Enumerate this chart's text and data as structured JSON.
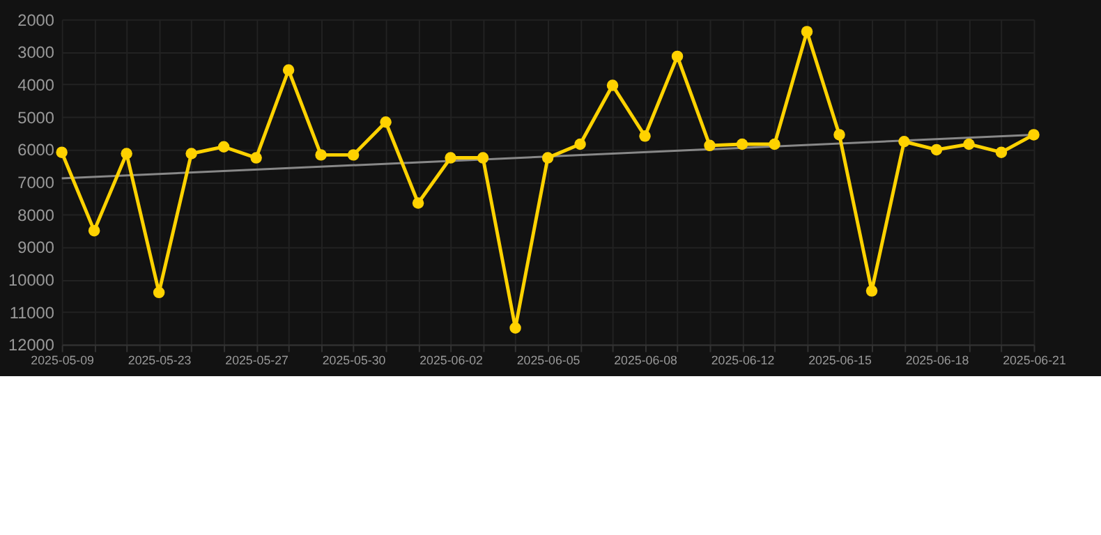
{
  "chart_data": {
    "type": "line",
    "categories": [
      "2025-05-09",
      null,
      null,
      "2025-05-23",
      null,
      null,
      "2025-05-27",
      null,
      null,
      "2025-05-30",
      null,
      null,
      "2025-06-02",
      null,
      null,
      "2025-06-05",
      null,
      null,
      "2025-06-08",
      null,
      null,
      "2025-06-12",
      null,
      null,
      "2025-06-15",
      null,
      null,
      "2025-06-18",
      null,
      null,
      "2025-06-21"
    ],
    "series": [
      {
        "color": "#ffd200",
        "values": [
          6090,
          8500,
          6130,
          10400,
          6130,
          5920,
          6260,
          3560,
          6170,
          6170,
          5160,
          7650,
          6260,
          6260,
          11490,
          6260,
          5840,
          4030,
          5590,
          3140,
          5880,
          5840,
          5840,
          2380,
          5550,
          10350,
          5760,
          6010,
          5840,
          6090,
          5550
        ],
        "marker": "circle"
      },
      {
        "type": "line",
        "color": "#888888",
        "values": [
          6890,
          null,
          null,
          null,
          null,
          null,
          null,
          null,
          null,
          null,
          null,
          null,
          null,
          null,
          null,
          null,
          null,
          null,
          null,
          null,
          null,
          null,
          null,
          null,
          null,
          null,
          null,
          null,
          null,
          null,
          5550
        ],
        "marker": "none"
      }
    ],
    "ylim": [
      12000,
      2000
    ],
    "yticks": [
      2000,
      3000,
      4000,
      5000,
      6000,
      7000,
      8000,
      9000,
      10000,
      11000,
      12000
    ],
    "grid": true,
    "line_style": "solid"
  }
}
